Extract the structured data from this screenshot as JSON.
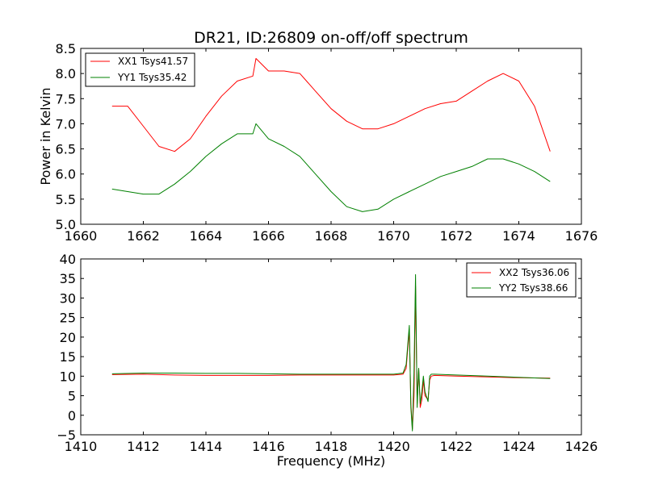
{
  "figure": {
    "title": "DR21, ID:26809 on-off/off spectrum",
    "ylabel": "Power in Kelvin",
    "xlabel": "Frequency (MHz)"
  },
  "chart_data": [
    {
      "type": "line",
      "title": "DR21, ID:26809 on-off/off spectrum",
      "xlabel": "",
      "ylabel": "Power in Kelvin",
      "xlim": [
        1660,
        1676
      ],
      "ylim": [
        5.0,
        8.5
      ],
      "xticks": [
        1660,
        1662,
        1664,
        1666,
        1668,
        1670,
        1672,
        1674,
        1676
      ],
      "xtick_labels": [
        "1660",
        "1662",
        "1664",
        "1666",
        "1668",
        "1670",
        "1672",
        "1674",
        "1676"
      ],
      "yticks": [
        5.0,
        5.5,
        6.0,
        6.5,
        7.0,
        7.5,
        8.0,
        8.5
      ],
      "ytick_labels": [
        "5.0",
        "5.5",
        "6.0",
        "6.5",
        "7.0",
        "7.5",
        "8.0",
        "8.5"
      ],
      "grid": false,
      "legend": "top-left",
      "series": [
        {
          "name": "XX1 Tsys41.57",
          "color": "#ff0000",
          "x": [
            1661.0,
            1661.5,
            1662.0,
            1662.5,
            1663.0,
            1663.5,
            1664.0,
            1664.5,
            1665.0,
            1665.5,
            1665.6,
            1666.0,
            1666.5,
            1667.0,
            1667.5,
            1668.0,
            1668.5,
            1669.0,
            1669.5,
            1670.0,
            1670.5,
            1671.0,
            1671.5,
            1672.0,
            1672.5,
            1673.0,
            1673.5,
            1674.0,
            1674.5,
            1675.0
          ],
          "y": [
            7.35,
            7.35,
            6.95,
            6.55,
            6.45,
            6.7,
            7.15,
            7.55,
            7.85,
            7.95,
            8.3,
            8.05,
            8.05,
            8.0,
            7.65,
            7.3,
            7.05,
            6.9,
            6.9,
            7.0,
            7.15,
            7.3,
            7.4,
            7.45,
            7.65,
            7.85,
            8.0,
            7.85,
            7.35,
            6.45
          ]
        },
        {
          "name": "YY1 Tsys35.42",
          "color": "#008000",
          "x": [
            1661.0,
            1661.5,
            1662.0,
            1662.5,
            1663.0,
            1663.5,
            1664.0,
            1664.5,
            1665.0,
            1665.5,
            1665.6,
            1666.0,
            1666.5,
            1667.0,
            1667.5,
            1668.0,
            1668.5,
            1669.0,
            1669.5,
            1670.0,
            1670.5,
            1671.0,
            1671.5,
            1672.0,
            1672.5,
            1673.0,
            1673.5,
            1674.0,
            1674.5,
            1675.0
          ],
          "y": [
            5.7,
            5.65,
            5.6,
            5.6,
            5.8,
            6.05,
            6.35,
            6.6,
            6.8,
            6.8,
            7.0,
            6.7,
            6.55,
            6.35,
            6.0,
            5.65,
            5.35,
            5.25,
            5.3,
            5.5,
            5.65,
            5.8,
            5.95,
            6.05,
            6.15,
            6.3,
            6.3,
            6.2,
            6.05,
            5.85
          ]
        }
      ]
    },
    {
      "type": "line",
      "title": "",
      "xlabel": "Frequency (MHz)",
      "ylabel": "",
      "xlim": [
        1410,
        1426
      ],
      "ylim": [
        -5,
        40
      ],
      "xticks": [
        1410,
        1412,
        1414,
        1416,
        1418,
        1420,
        1422,
        1424,
        1426
      ],
      "xtick_labels": [
        "1410",
        "1412",
        "1414",
        "1416",
        "1418",
        "1420",
        "1422",
        "1424",
        "1426"
      ],
      "yticks": [
        -5,
        0,
        5,
        10,
        15,
        20,
        25,
        30,
        35,
        40
      ],
      "ytick_labels": [
        "−5",
        "0",
        "5",
        "10",
        "15",
        "20",
        "25",
        "30",
        "35",
        "40"
      ],
      "grid": false,
      "legend": "top-right",
      "series": [
        {
          "name": "XX2 Tsys36.06",
          "color": "#ff0000",
          "x": [
            1411.0,
            1412.0,
            1413.0,
            1414.0,
            1415.0,
            1416.0,
            1417.0,
            1418.0,
            1419.0,
            1420.0,
            1420.3,
            1420.4,
            1420.5,
            1420.55,
            1420.6,
            1420.65,
            1420.7,
            1420.75,
            1420.8,
            1420.85,
            1420.9,
            1420.95,
            1421.0,
            1421.1,
            1421.15,
            1421.2,
            1421.3,
            1422.0,
            1423.0,
            1424.0,
            1425.0
          ],
          "y": [
            10.4,
            10.5,
            10.3,
            10.2,
            10.2,
            10.2,
            10.3,
            10.3,
            10.3,
            10.3,
            10.5,
            12.0,
            22.0,
            3.0,
            -3.5,
            5.0,
            33.0,
            3.0,
            12.0,
            2.0,
            4.0,
            9.0,
            5.0,
            4.0,
            9.0,
            10.0,
            10.2,
            10.0,
            9.8,
            9.6,
            9.5
          ]
        },
        {
          "name": "YY2 Tsys38.66",
          "color": "#008000",
          "x": [
            1411.0,
            1412.0,
            1413.0,
            1414.0,
            1415.0,
            1416.0,
            1417.0,
            1418.0,
            1419.0,
            1420.0,
            1420.3,
            1420.4,
            1420.5,
            1420.55,
            1420.6,
            1420.65,
            1420.7,
            1420.75,
            1420.8,
            1420.85,
            1420.9,
            1420.95,
            1421.0,
            1421.1,
            1421.15,
            1421.2,
            1421.3,
            1422.0,
            1423.0,
            1424.0,
            1425.0
          ],
          "y": [
            10.6,
            10.8,
            10.8,
            10.7,
            10.7,
            10.6,
            10.5,
            10.5,
            10.5,
            10.5,
            10.8,
            13.0,
            23.0,
            2.0,
            -4.0,
            11.0,
            36.0,
            2.0,
            12.0,
            3.0,
            6.0,
            10.0,
            6.0,
            3.5,
            10.0,
            10.5,
            10.5,
            10.3,
            10.0,
            9.7,
            9.4
          ]
        }
      ]
    }
  ]
}
